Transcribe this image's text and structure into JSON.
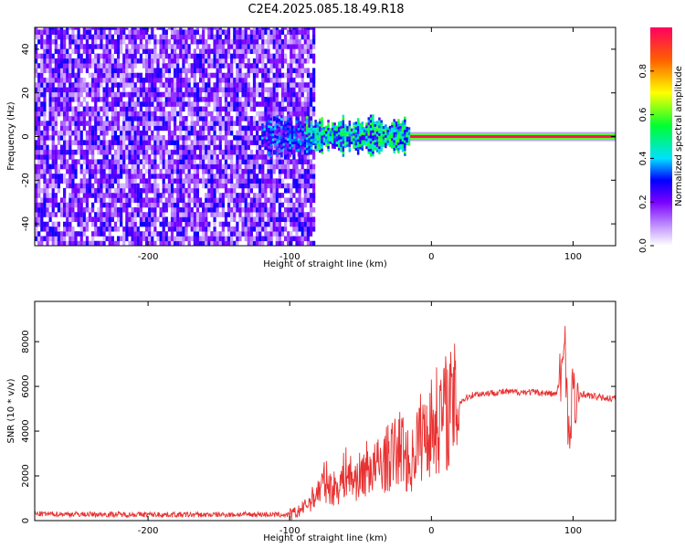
{
  "title": "C2E4.2025.085.18.49.R18",
  "chart_data": [
    {
      "type": "heatmap",
      "xlabel": "Height of straight line (km)",
      "ylabel": "Frequency (Hz)",
      "xlim": [
        -280,
        130
      ],
      "ylim": [
        -50,
        50
      ],
      "xticks": [
        "-200",
        "-100",
        "0",
        "100"
      ],
      "yticks": [
        "-40",
        "-20",
        "0",
        "20",
        "40"
      ],
      "colorbar": {
        "label": "Normalized spectral amplitude",
        "range": [
          0,
          1
        ],
        "ticks": [
          "0.0",
          "0.2",
          "0.4",
          "0.6",
          "0.8"
        ]
      },
      "regions": [
        {
          "x_range": [
            -280,
            -82
          ],
          "description_values": {
            "amplitude_range": [
              0.0,
              0.3
            ],
            "freq_spread_hz": [
              -50,
              50
            ]
          }
        },
        {
          "x_range": [
            -120,
            -15
          ],
          "description_values": {
            "amplitude_range": [
              0.2,
              0.6
            ],
            "freq_spread_hz": [
              -8,
              8
            ]
          }
        },
        {
          "x_range": [
            -15,
            130
          ],
          "description_values": {
            "amplitude_range": [
              0.9,
              1.0
            ],
            "freq_spread_hz": [
              -1,
              1
            ]
          }
        }
      ]
    },
    {
      "type": "line",
      "xlabel": "Height of straight line (km)",
      "ylabel": "SNR (10 * v/v)",
      "xlim": [
        -280,
        130
      ],
      "ylim": [
        0,
        9800
      ],
      "xticks": [
        "-200",
        "-100",
        "0",
        "100"
      ],
      "yticks": [
        "0",
        "2000",
        "4000",
        "6000",
        "8000"
      ],
      "color": "#e83232",
      "series": [
        {
          "x": [
            -280,
            -240,
            -200,
            -160,
            -120,
            -100,
            -95,
            -90,
            -85,
            -80,
            -75,
            -70,
            -65,
            -60,
            -55,
            -50,
            -45,
            -40,
            -35,
            -30,
            -25,
            -20,
            -15,
            -10,
            -5,
            0,
            5,
            10,
            15,
            20,
            25,
            30,
            40,
            50,
            60,
            70,
            80,
            88,
            92,
            94,
            96,
            98,
            100,
            102,
            105,
            110,
            120,
            130
          ],
          "y": [
            300,
            280,
            270,
            260,
            280,
            250,
            350,
            600,
            900,
            1300,
            1800,
            1400,
            1600,
            2200,
            1800,
            2000,
            2400,
            2300,
            2600,
            2800,
            3100,
            3300,
            2300,
            3600,
            3900,
            4200,
            4600,
            4900,
            5100,
            5300,
            5500,
            5650,
            5700,
            5750,
            5750,
            5750,
            5700,
            5650,
            6500,
            8800,
            5000,
            3000,
            6800,
            4400,
            5700,
            5600,
            5500,
            5450
          ]
        }
      ]
    }
  ]
}
